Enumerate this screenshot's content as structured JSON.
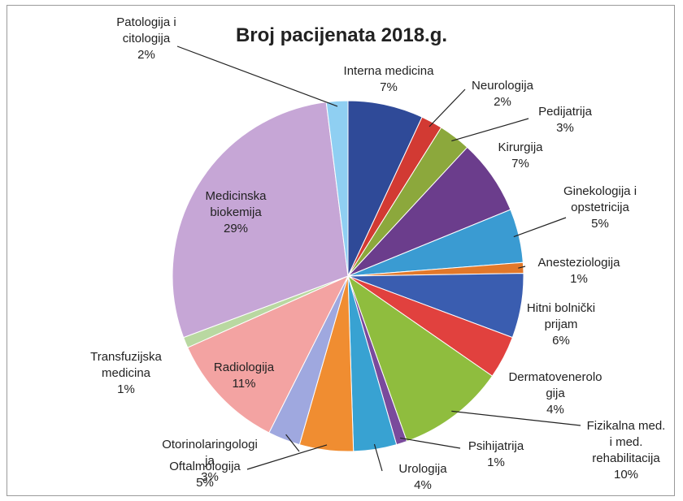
{
  "chart_data": {
    "type": "pie",
    "title": "Broj pacijenata 2018.g.",
    "categories": [
      "Interna medicina",
      "Neurologija",
      "Pedijatrija",
      "Kirurgija",
      "Ginekologija i\nopstetricija",
      "Anesteziologija",
      "Hitni bolnički\nprijam",
      "Dermatovenerolo\ngija",
      "Fizikalna med.\ni med.\nrehabilitacija",
      "Psihijatrija",
      "Urologija",
      "Oftalmologija",
      "Otorinolaringologi\nja",
      "Radiologija",
      "Transfuzijska\nmedicina",
      "Medicinska\nbiokemija",
      "Patologija i\ncitologija"
    ],
    "values": [
      7,
      2,
      3,
      7,
      5,
      1,
      6,
      4,
      10,
      1,
      4,
      5,
      3,
      11,
      1,
      29,
      2
    ],
    "value_labels": [
      "7%",
      "2%",
      "3%",
      "7%",
      "5%",
      "1%",
      "6%",
      "4%",
      "10%",
      "1%",
      "4%",
      "5%",
      "3%",
      "11%",
      "1%",
      "29%",
      "2%"
    ],
    "colors": [
      "#2f4a98",
      "#d23a33",
      "#8ca83c",
      "#6b3d8c",
      "#3a9bd2",
      "#e2782a",
      "#3a5db0",
      "#e1413e",
      "#8fbd3e",
      "#7a4a9c",
      "#38a2d2",
      "#f08d31",
      "#9fa8df",
      "#f3a3a2",
      "#b9d8a1",
      "#c6a6d6",
      "#8fcff2"
    ]
  }
}
